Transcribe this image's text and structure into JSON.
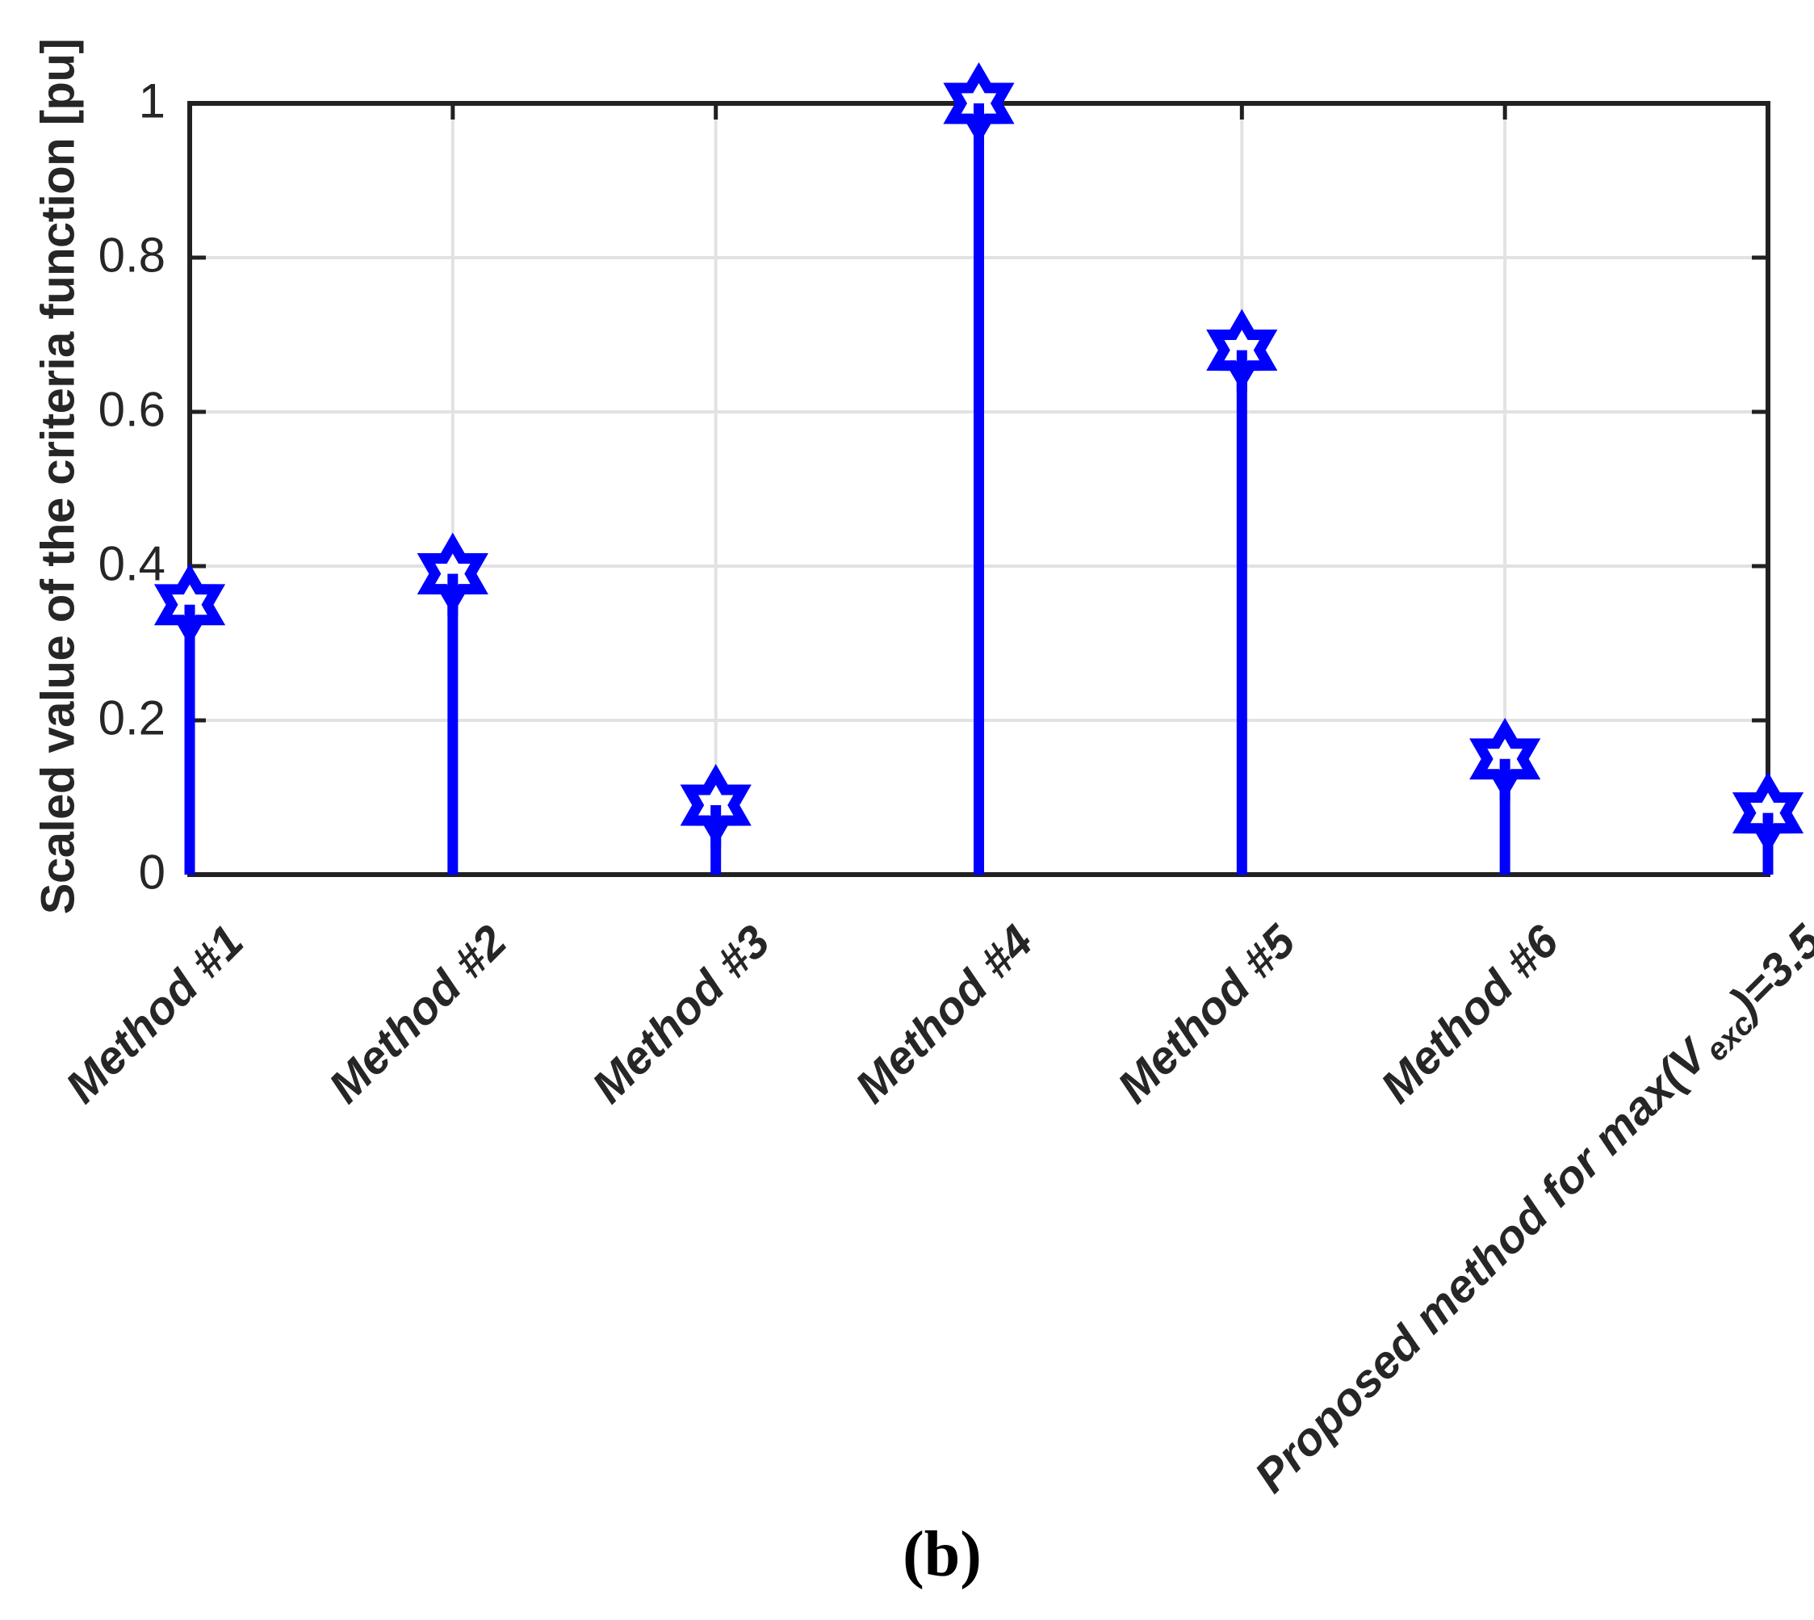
{
  "figure": {
    "caption": {
      "open": "(",
      "letter": "b",
      "close": ")"
    }
  },
  "chart_data": {
    "type": "stem",
    "title": "",
    "xlabel": "",
    "ylabel": "Scaled value of the criteria function [pu]",
    "ylim": [
      0,
      1
    ],
    "grid": true,
    "legend": "none",
    "categories": [
      "Method #1",
      "Method #2",
      "Method #3",
      "Method #4",
      "Method #5",
      "Method #6",
      "Proposed method for max(V_exc)=3.5"
    ],
    "last_category_parts": {
      "pre": "Proposed method for max(V",
      "sub": "exc",
      "post": ")=3.5"
    },
    "values": [
      0.35,
      0.39,
      0.09,
      1.0,
      0.68,
      0.15,
      0.08
    ],
    "yticks": [
      {
        "v": 0,
        "label": "0"
      },
      {
        "v": 0.2,
        "label": "0.2"
      },
      {
        "v": 0.4,
        "label": "0.4"
      },
      {
        "v": 0.6,
        "label": "0.6"
      },
      {
        "v": 0.8,
        "label": "0.8"
      },
      {
        "v": 1,
        "label": "1"
      }
    ],
    "marker": "hexagram",
    "colors": {
      "stem": "#0000FF",
      "marker_face": "#FFFFFF",
      "axis": "#212121",
      "grid": "#E2E2E2",
      "text": "#262626"
    }
  }
}
